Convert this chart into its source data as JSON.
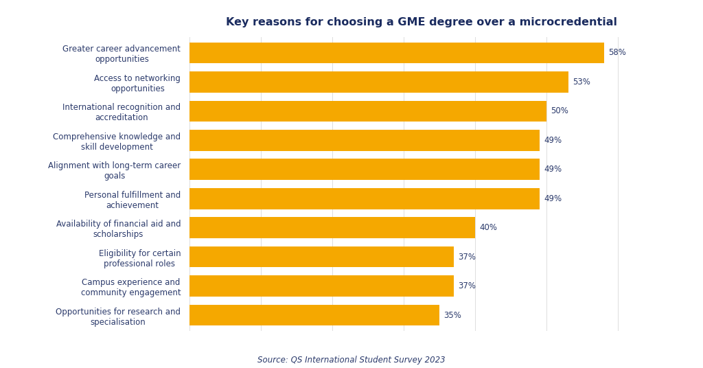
{
  "title": "Key reasons for choosing a GME degree over a microcredential",
  "source": "Source: QS International Student Survey 2023",
  "categories": [
    "Opportunities for research and\nspecialisation",
    "Campus experience and\ncommunity engagement",
    "Eligibility for certain\nprofessional roles",
    "Availability of financial aid and\nscholarships",
    "Personal fulfillment and\nachievement",
    "Alignment with long-term career\ngoals",
    "Comprehensive knowledge and\nskill development",
    "International recognition and\naccreditation",
    "Access to networking\nopportunities",
    "Greater career advancement\nopportunities"
  ],
  "values": [
    35,
    37,
    37,
    40,
    49,
    49,
    49,
    50,
    53,
    58
  ],
  "bar_color": "#F5A800",
  "title_color": "#1a2b5f",
  "label_color": "#2b3a6b",
  "value_color": "#2b3a6b",
  "source_color": "#2b3a6b",
  "background_color": "#ffffff",
  "grid_color": "#dddddd",
  "xlim": [
    0,
    65
  ],
  "title_fontsize": 11.5,
  "label_fontsize": 8.5,
  "value_fontsize": 8.5,
  "source_fontsize": 8.5
}
